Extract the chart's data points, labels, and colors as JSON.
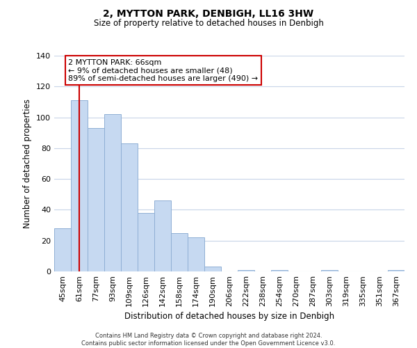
{
  "title": "2, MYTTON PARK, DENBIGH, LL16 3HW",
  "subtitle": "Size of property relative to detached houses in Denbigh",
  "xlabel": "Distribution of detached houses by size in Denbigh",
  "ylabel": "Number of detached properties",
  "bar_labels": [
    "45sqm",
    "61sqm",
    "77sqm",
    "93sqm",
    "109sqm",
    "126sqm",
    "142sqm",
    "158sqm",
    "174sqm",
    "190sqm",
    "206sqm",
    "222sqm",
    "238sqm",
    "254sqm",
    "270sqm",
    "287sqm",
    "303sqm",
    "319sqm",
    "335sqm",
    "351sqm",
    "367sqm"
  ],
  "bar_values": [
    28,
    111,
    93,
    102,
    83,
    38,
    46,
    25,
    22,
    3,
    0,
    1,
    0,
    1,
    0,
    0,
    1,
    0,
    0,
    0,
    1
  ],
  "bar_color": "#c6d9f1",
  "bar_edge_color": "#8fafd4",
  "vline_x": 1,
  "vline_color": "#cc0000",
  "ylim": [
    0,
    140
  ],
  "yticks": [
    0,
    20,
    40,
    60,
    80,
    100,
    120,
    140
  ],
  "annotation_title": "2 MYTTON PARK: 66sqm",
  "annotation_line1": "← 9% of detached houses are smaller (48)",
  "annotation_line2": "89% of semi-detached houses are larger (490) →",
  "annotation_box_color": "#ffffff",
  "annotation_box_edge": "#cc0000",
  "footer_line1": "Contains HM Land Registry data © Crown copyright and database right 2024.",
  "footer_line2": "Contains public sector information licensed under the Open Government Licence v3.0.",
  "background_color": "#ffffff",
  "grid_color": "#c8d4e8"
}
